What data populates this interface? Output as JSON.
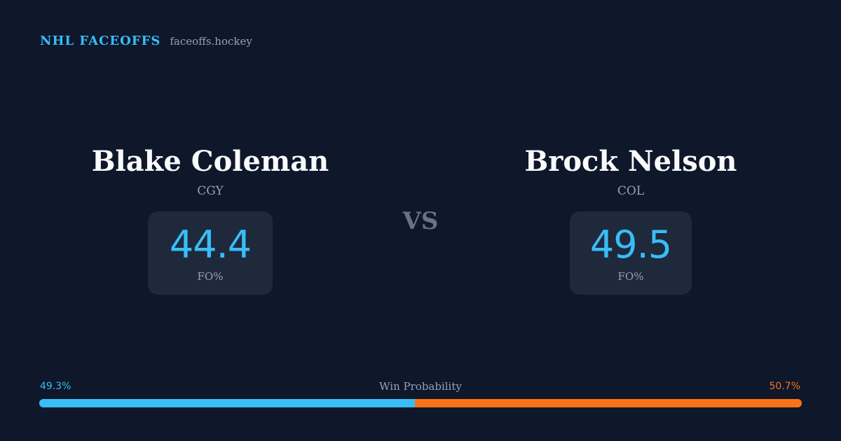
{
  "brand": {
    "name": "NHL FACEOFFS",
    "domain": "faceoffs.hockey"
  },
  "players": {
    "left": {
      "name": "Blake Coleman",
      "team": "CGY",
      "stat_value": "44.4",
      "stat_label": "FO%"
    },
    "right": {
      "name": "Brock Nelson",
      "team": "COL",
      "stat_value": "49.5",
      "stat_label": "FO%"
    }
  },
  "vs_label": "VS",
  "win_probability": {
    "title": "Win Probability",
    "left_label": "49.3%",
    "right_label": "50.7%",
    "left_value": 49.3,
    "right_value": 50.7
  },
  "colors": {
    "background": "#0f172a",
    "accent_left": "#38bdf8",
    "accent_right": "#f97316",
    "card": "#1e293b",
    "muted": "#94a3b8"
  }
}
